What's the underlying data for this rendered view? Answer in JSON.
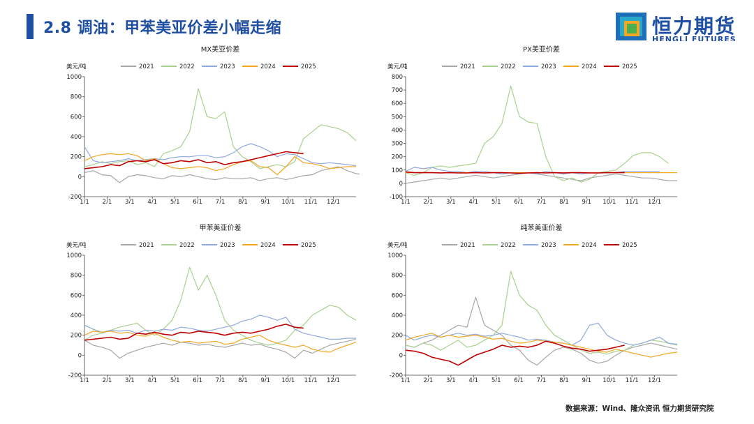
{
  "header": {
    "title": "2.8  调油：甲苯美亚价差小幅走缩",
    "logo_cn": "恒力期货",
    "logo_en": "HENGLI FUTURES"
  },
  "footer": {
    "source": "数据来源：Wind、隆众资讯 恒力期货研究院"
  },
  "colors": {
    "2021": "#a6a6a6",
    "2022": "#a9d18e",
    "2023": "#8faadc",
    "2024": "#f5a623",
    "2025": "#c00000"
  },
  "chart_data": [
    {
      "type": "line",
      "title": "MX美亚价差",
      "ylabel": "美元/吨",
      "ylim": [
        -200,
        1000
      ],
      "yticks": [
        -200,
        0,
        200,
        400,
        600,
        800,
        1000
      ],
      "x_ticks": [
        "1/1",
        "2/1",
        "3/1",
        "4/1",
        "5/1",
        "6/1",
        "7/1",
        "8/1",
        "9/1",
        "10/1",
        "11/1",
        "12/1"
      ],
      "series": [
        {
          "name": "2021",
          "color": "#a6a6a6",
          "values": [
            40,
            60,
            20,
            10,
            -60,
            0,
            20,
            10,
            -10,
            -20,
            10,
            0,
            20,
            0,
            -20,
            -30,
            -10,
            -20,
            -20,
            -10,
            -40,
            -20,
            -10,
            -30,
            -10,
            10,
            20,
            60,
            80,
            100,
            60,
            30,
            20,
            20,
            40
          ]
        },
        {
          "name": "2022",
          "color": "#a9d18e",
          "values": [
            100,
            120,
            150,
            130,
            150,
            160,
            120,
            140,
            100,
            230,
            260,
            300,
            450,
            880,
            600,
            580,
            650,
            300,
            200,
            150,
            80,
            100,
            120,
            100,
            150,
            380,
            450,
            520,
            500,
            480,
            440,
            360
          ]
        },
        {
          "name": "2023",
          "color": "#8faadc",
          "values": [
            300,
            160,
            140,
            150,
            160,
            180,
            160,
            170,
            180,
            170,
            190,
            200,
            200,
            210,
            210,
            190,
            200,
            240,
            300,
            330,
            300,
            260,
            200,
            230,
            220,
            180,
            140,
            130,
            140,
            130,
            120,
            110
          ]
        },
        {
          "name": "2024",
          "color": "#f5a623",
          "values": [
            160,
            200,
            220,
            230,
            220,
            230,
            210,
            160,
            180,
            130,
            90,
            80,
            90,
            100,
            90,
            60,
            80,
            120,
            150,
            160,
            100,
            90,
            20,
            100,
            200,
            140,
            130,
            110,
            80,
            90,
            100,
            100
          ]
        },
        {
          "name": "2025",
          "color": "#c00000",
          "values": [
            80,
            90,
            100,
            120,
            110,
            150,
            160,
            150,
            170,
            130,
            140,
            160,
            150,
            170,
            140,
            150,
            120,
            140,
            150,
            170,
            190,
            210,
            230,
            250,
            240,
            230
          ]
        }
      ]
    },
    {
      "type": "line",
      "title": "PX美亚价差",
      "ylabel": "美元/吨",
      "ylim": [
        -100,
        800
      ],
      "yticks": [
        -100,
        0,
        100,
        200,
        300,
        400,
        500,
        600,
        700,
        800
      ],
      "x_ticks": [
        "1/1",
        "2/1",
        "3/1",
        "4/1",
        "5/1",
        "6/1",
        "7/1",
        "8/1",
        "9/1",
        "10/1",
        "11/1",
        "12/1"
      ],
      "series": [
        {
          "name": "2021",
          "color": "#a6a6a6",
          "values": [
            0,
            10,
            20,
            30,
            40,
            30,
            40,
            50,
            60,
            50,
            40,
            50,
            60,
            70,
            80,
            70,
            60,
            50,
            40,
            30,
            20,
            40,
            50,
            60,
            70,
            60,
            50,
            40,
            40,
            30,
            20,
            20
          ]
        },
        {
          "name": "2022",
          "color": "#a9d18e",
          "values": [
            80,
            60,
            80,
            120,
            130,
            120,
            130,
            140,
            150,
            300,
            350,
            450,
            730,
            500,
            460,
            450,
            200,
            50,
            20,
            40,
            10,
            30,
            80,
            90,
            100,
            150,
            210,
            230,
            230,
            200,
            150
          ]
        },
        {
          "name": "2023",
          "color": "#8faadc",
          "values": [
            90,
            120,
            110,
            120,
            100,
            90,
            90,
            80,
            90,
            90,
            80,
            70,
            80,
            70,
            80,
            70,
            90,
            80,
            70,
            80,
            70,
            80,
            80,
            80,
            80,
            90,
            90,
            90,
            90,
            90
          ]
        },
        {
          "name": "2024",
          "color": "#f5a623",
          "values": [
            80,
            80,
            80,
            80,
            80,
            80,
            80,
            80,
            80,
            80,
            80,
            80,
            80,
            80,
            80,
            80,
            80,
            80,
            80,
            80,
            80,
            80,
            80,
            80,
            80,
            80,
            80,
            80,
            80,
            80,
            80,
            80
          ]
        },
        {
          "name": "2025",
          "color": "#c00000",
          "values": [
            85,
            80,
            80,
            80,
            78,
            80,
            78,
            78,
            80,
            78,
            80,
            80,
            78,
            76,
            78,
            80,
            78,
            80,
            78,
            80,
            80,
            78,
            78,
            80,
            80,
            80
          ]
        }
      ]
    },
    {
      "type": "line",
      "title": "甲苯美亚价差",
      "ylabel": "美元/吨",
      "ylim": [
        -200,
        1000
      ],
      "yticks": [
        -200,
        0,
        200,
        400,
        600,
        800,
        1000
      ],
      "x_ticks": [
        "1/1",
        "2/1",
        "3/1",
        "4/1",
        "5/1",
        "6/1",
        "7/1",
        "8/1",
        "9/1",
        "10/1",
        "11/1",
        "12/1"
      ],
      "series": [
        {
          "name": "2021",
          "color": "#a6a6a6",
          "values": [
            150,
            100,
            80,
            50,
            -30,
            20,
            50,
            80,
            100,
            120,
            100,
            130,
            120,
            100,
            110,
            90,
            80,
            100,
            120,
            100,
            110,
            80,
            60,
            30,
            -30,
            50,
            20,
            60,
            100,
            120,
            140,
            160
          ]
        },
        {
          "name": "2022",
          "color": "#a9d18e",
          "values": [
            150,
            200,
            220,
            250,
            280,
            300,
            320,
            250,
            200,
            260,
            350,
            550,
            880,
            650,
            800,
            600,
            350,
            250,
            200,
            150,
            120,
            100,
            120,
            150,
            250,
            300,
            400,
            450,
            500,
            480,
            400,
            350
          ]
        },
        {
          "name": "2023",
          "color": "#8faadc",
          "values": [
            300,
            260,
            230,
            250,
            240,
            250,
            220,
            250,
            240,
            260,
            250,
            280,
            270,
            250,
            240,
            260,
            280,
            300,
            340,
            360,
            400,
            380,
            350,
            380,
            260,
            220,
            200,
            180,
            160,
            160,
            170,
            170
          ]
        },
        {
          "name": "2024",
          "color": "#f5a623",
          "values": [
            200,
            240,
            230,
            240,
            220,
            230,
            200,
            190,
            220,
            180,
            150,
            130,
            140,
            120,
            130,
            140,
            110,
            120,
            160,
            180,
            200,
            150,
            120,
            100,
            80,
            100,
            60,
            40,
            30,
            70,
            100,
            130
          ]
        },
        {
          "name": "2025",
          "color": "#c00000",
          "values": [
            150,
            160,
            170,
            180,
            160,
            170,
            220,
            210,
            230,
            210,
            200,
            230,
            220,
            240,
            230,
            220,
            200,
            220,
            230,
            220,
            240,
            260,
            290,
            310,
            280,
            270
          ]
        }
      ]
    },
    {
      "type": "line",
      "title": "纯苯美亚价差",
      "ylabel": "美元/吨",
      "ylim": [
        -200,
        1000
      ],
      "yticks": [
        -200,
        0,
        200,
        400,
        600,
        800,
        1000
      ],
      "x_ticks": [
        "1/1",
        "2/1",
        "3/1",
        "4/1",
        "5/1",
        "6/1",
        "7/1",
        "8/1",
        "9/1",
        "10/1",
        "11/1",
        "12/1"
      ],
      "series": [
        {
          "name": "2021",
          "color": "#a6a6a6",
          "values": [
            100,
            80,
            120,
            150,
            200,
            250,
            300,
            280,
            580,
            300,
            250,
            200,
            100,
            50,
            -50,
            -100,
            -20,
            50,
            80,
            60,
            20,
            -50,
            -80,
            -60,
            0,
            50,
            80,
            100,
            120,
            100,
            80,
            60
          ]
        },
        {
          "name": "2022",
          "color": "#a9d18e",
          "values": [
            100,
            80,
            120,
            100,
            50,
            100,
            150,
            80,
            100,
            150,
            200,
            300,
            840,
            600,
            500,
            450,
            300,
            200,
            150,
            100,
            50,
            20,
            30,
            10,
            40,
            50,
            100,
            120,
            150,
            140,
            120,
            100
          ]
        },
        {
          "name": "2023",
          "color": "#8faadc",
          "values": [
            200,
            150,
            180,
            200,
            180,
            200,
            220,
            200,
            210,
            190,
            200,
            220,
            200,
            180,
            150,
            160,
            150,
            130,
            120,
            100,
            150,
            300,
            320,
            200,
            150,
            120,
            100,
            120,
            150,
            180,
            120,
            110
          ]
        },
        {
          "name": "2024",
          "color": "#f5a623",
          "values": [
            150,
            180,
            200,
            220,
            180,
            200,
            180,
            190,
            200,
            180,
            160,
            170,
            140,
            120,
            130,
            150,
            140,
            130,
            120,
            100,
            80,
            60,
            40,
            30,
            60,
            40,
            20,
            0,
            -20,
            0,
            20,
            30
          ]
        },
        {
          "name": "2025",
          "color": "#c00000",
          "values": [
            50,
            40,
            20,
            -20,
            -40,
            -60,
            -100,
            -50,
            0,
            30,
            60,
            100,
            80,
            90,
            80,
            100,
            140,
            120,
            90,
            70,
            60,
            40,
            50,
            60,
            80,
            100
          ]
        }
      ]
    }
  ]
}
